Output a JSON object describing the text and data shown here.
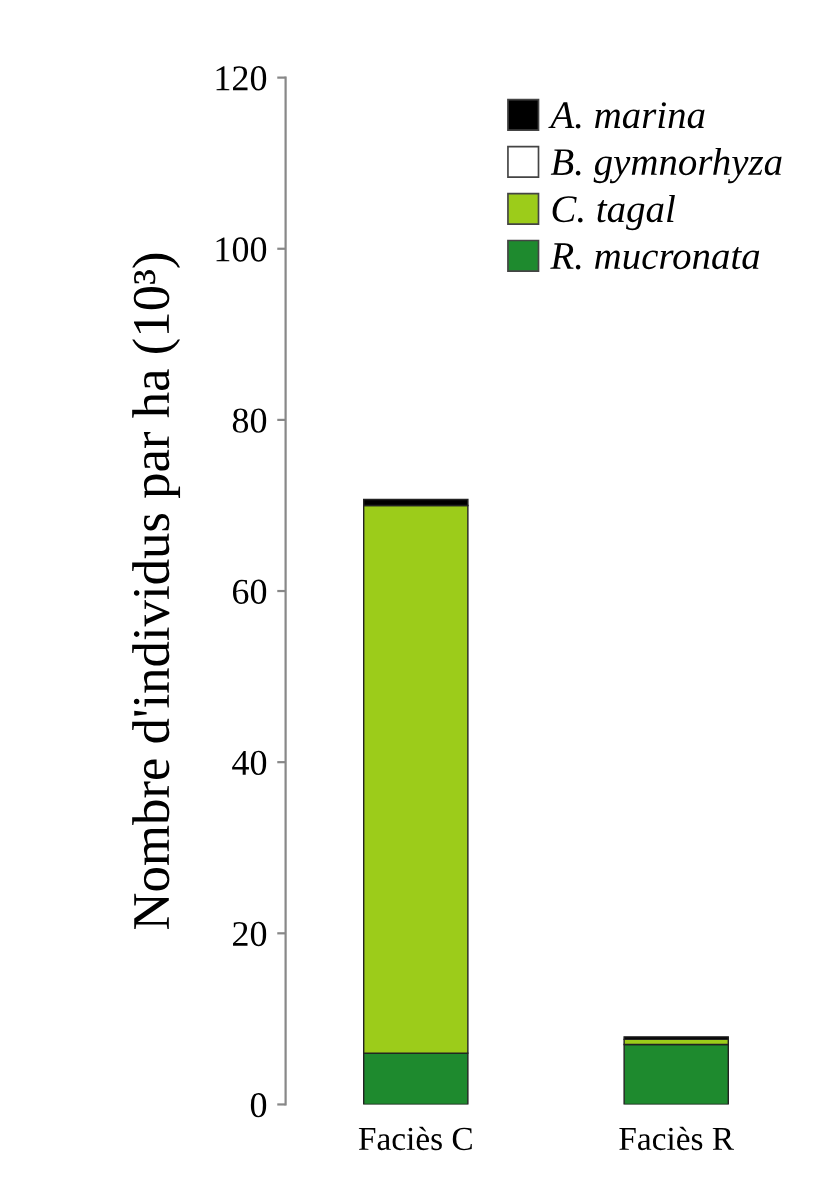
{
  "chart_data": {
    "type": "bar",
    "stacked": true,
    "ylabel": "Nombre d'individus par ha (10³)",
    "categories": [
      "Faciès C",
      "Faciès R"
    ],
    "series": [
      {
        "name": "R. mucronata",
        "color": "#1e8a2e",
        "values": [
          6,
          7
        ]
      },
      {
        "name": "C. tagal",
        "color": "#9ccc1a",
        "values": [
          64,
          0.6
        ]
      },
      {
        "name": "B. gymnorhyza",
        "color": "#ffffff",
        "values": [
          0,
          0
        ]
      },
      {
        "name": "A. marina",
        "color": "#000000",
        "values": [
          0.7,
          0.3
        ]
      }
    ],
    "ylim": [
      0,
      120
    ],
    "yticks": [
      0,
      20,
      40,
      60,
      80,
      100,
      120
    ],
    "grid": false,
    "legend": "top right"
  }
}
